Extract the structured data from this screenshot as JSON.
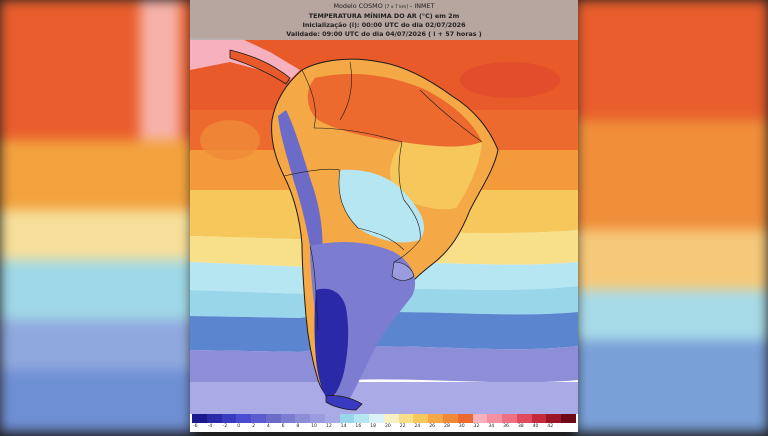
{
  "header": {
    "model_prefix": "Modelo COSMO",
    "model_res": "[7 x 7 km]",
    "model_suffix": "- INMET",
    "variable": "TEMPERATURA MÍNIMA DO AR (°C) em 2m",
    "init": "Inicialização (i): 00:00 UTC do dia 02/07/2026",
    "validity": "Validade: 09:00 UTC do dia 04/07/2026 ( i + 57 horas )"
  },
  "colorbar": {
    "labels": [
      "-6",
      "-4",
      "-2",
      "0",
      "2",
      "4",
      "6",
      "8",
      "10",
      "12",
      "14",
      "16",
      "18",
      "20",
      "22",
      "24",
      "26",
      "28",
      "30",
      "32",
      "34",
      "36",
      "38",
      "40",
      "42",
      ""
    ],
    "colors": [
      "#1a1a8c",
      "#2a2aa8",
      "#3a3ac0",
      "#4a4ad2",
      "#5b5bcf",
      "#6c6cc8",
      "#7c7cd0",
      "#8d8dd8",
      "#9b9be0",
      "#aaaae6",
      "#9ad6ea",
      "#b6e6f2",
      "#d8f2f8",
      "#f6f0c4",
      "#f8e08a",
      "#f6c85c",
      "#f4a846",
      "#f08a38",
      "#ec6a2e",
      "#f7b0bd",
      "#f4909f",
      "#ee7084",
      "#e04a5e",
      "#c42a3c",
      "#9c1428",
      "#6e0a18"
    ]
  },
  "colors": {
    "hot": "#e85a2a",
    "warm": "#f39a3a",
    "mild": "#f8e08a",
    "cool": "#9ad6ea",
    "cold": "#7c7cd0",
    "very_cold": "#3a3ac0",
    "land_outline": "#1a1a1a"
  }
}
